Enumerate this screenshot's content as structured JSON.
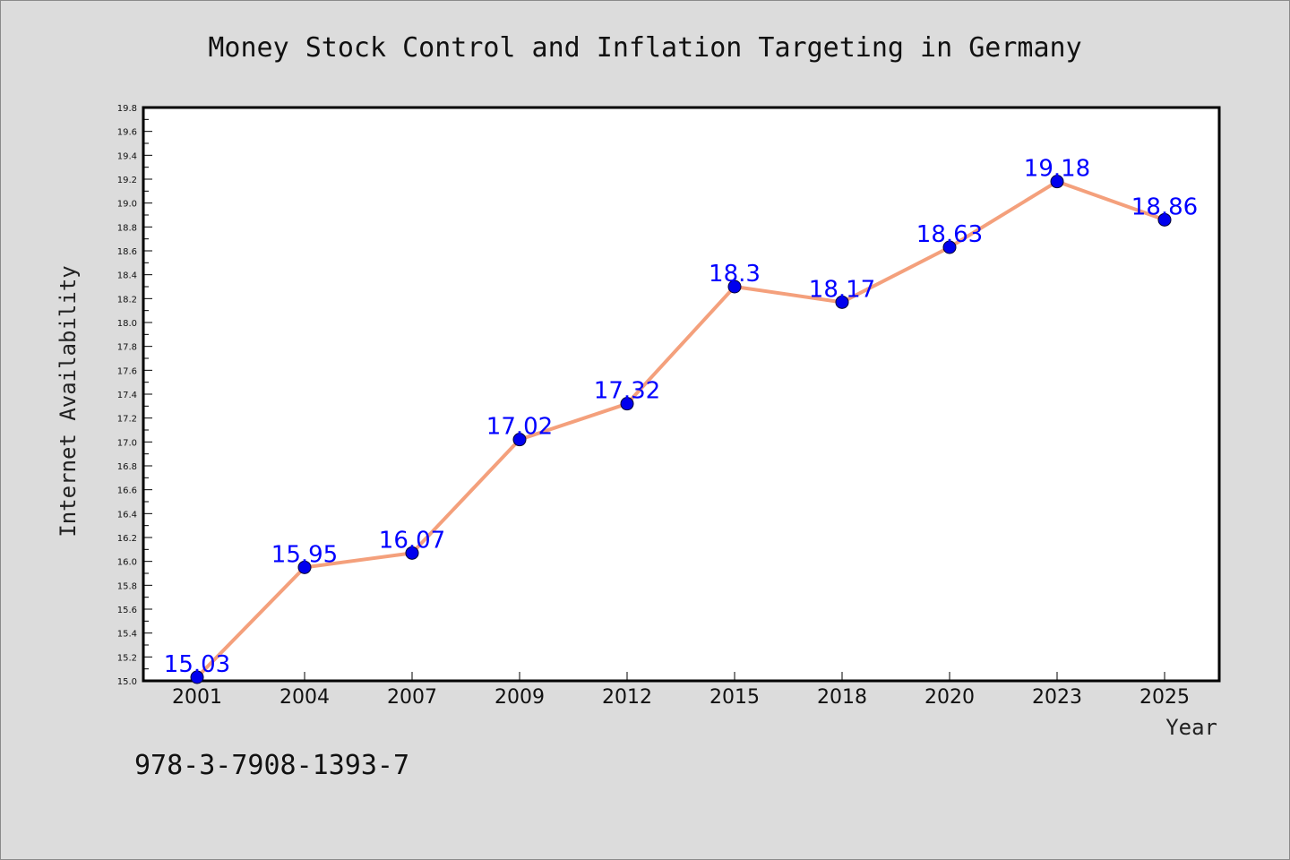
{
  "chart_data": {
    "type": "line",
    "title": "Money Stock Control and Inflation Targeting in Germany",
    "xlabel": "Year",
    "ylabel": "Internet Availability",
    "categories": [
      "2001",
      "2004",
      "2007",
      "2009",
      "2012",
      "2015",
      "2018",
      "2020",
      "2023",
      "2025"
    ],
    "series": [
      {
        "values": [
          15.03,
          15.95,
          16.07,
          17.02,
          17.32,
          18.3,
          18.17,
          18.63,
          19.18,
          18.86
        ],
        "labels": [
          "15.03",
          "15.95",
          "16.07",
          "17.02",
          "17.32",
          "18.3",
          "18.17",
          "18.63",
          "19.18",
          "18.86"
        ],
        "line_color": "#f4a07c",
        "marker_color": "#0000ee",
        "label_color": "#0000ff"
      }
    ],
    "ylim": [
      15.0,
      19.8
    ],
    "yticks": [
      "15.0",
      "15.2",
      "15.4",
      "15.6",
      "15.8",
      "16.0",
      "16.2",
      "16.4",
      "16.6",
      "16.8",
      "17.0",
      "17.2",
      "17.4",
      "17.6",
      "17.8",
      "18.0",
      "18.2",
      "18.4",
      "18.6",
      "18.8",
      "19.0",
      "19.2",
      "19.4",
      "19.6",
      "19.8"
    ],
    "grid": false,
    "legend": "none"
  },
  "annotation": "978-3-7908-1393-7",
  "colors": {
    "background": "#dcdcdc",
    "plot_background": "#ffffff",
    "axis": "#000000"
  }
}
